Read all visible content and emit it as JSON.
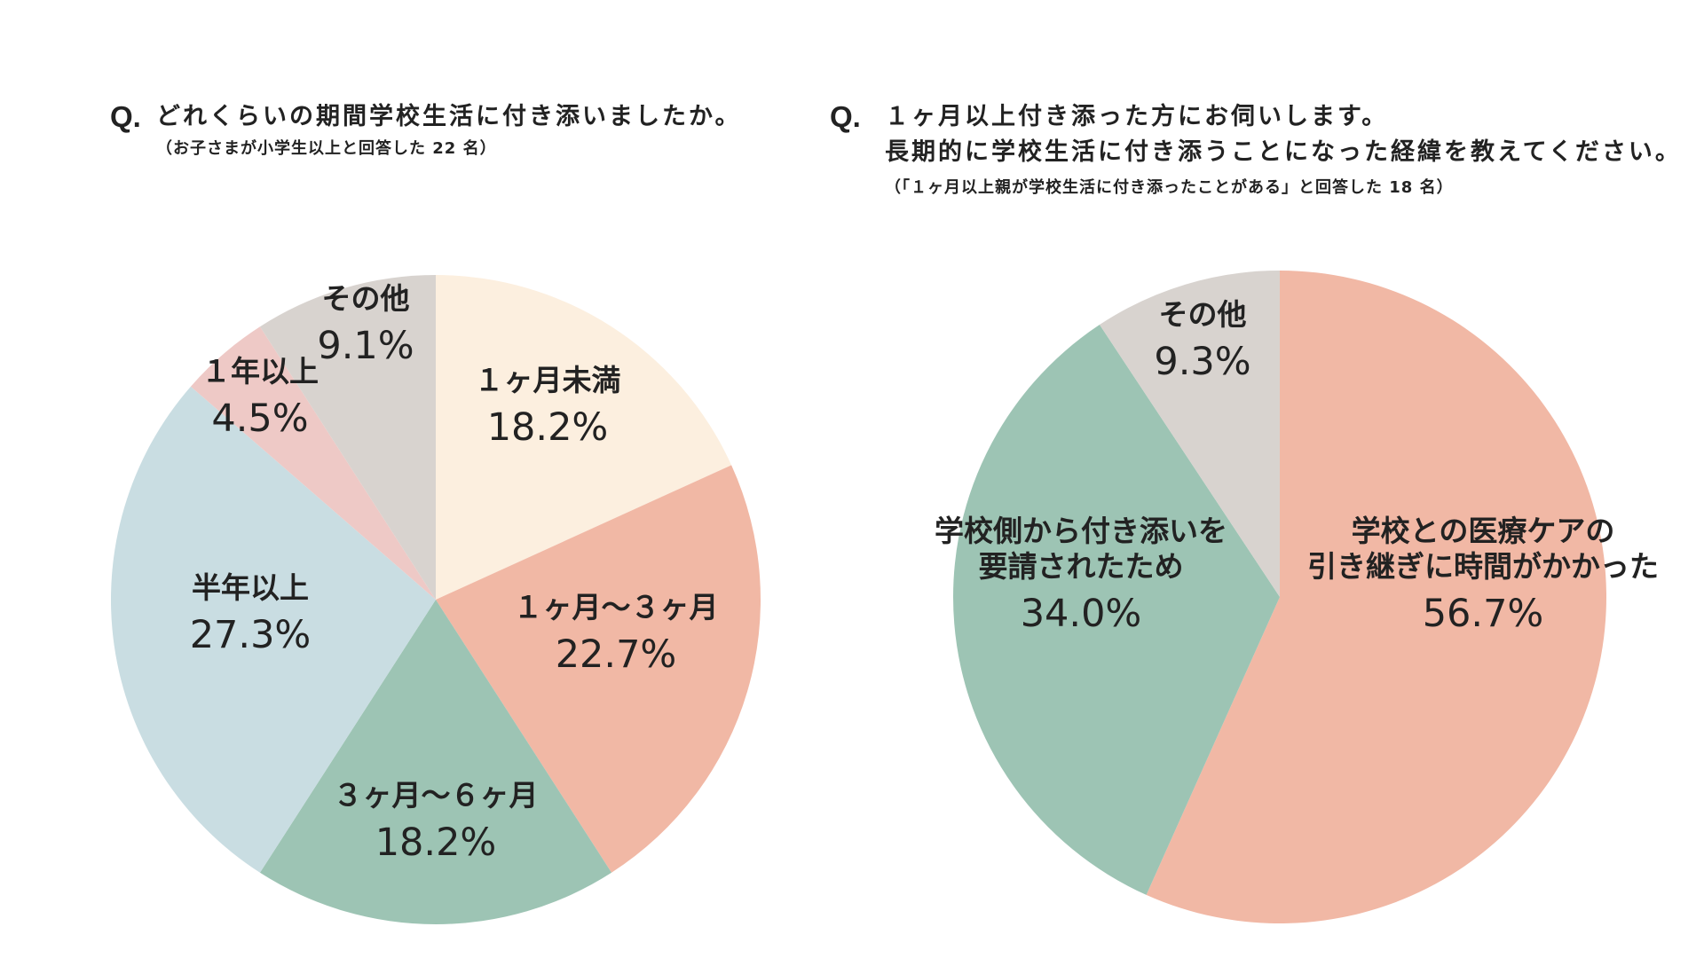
{
  "questions": {
    "q1": {
      "mark": "Q.",
      "lines": [
        "どれくらいの期間学校生活に付き添いましたか。"
      ],
      "note": "（お子さまが小学生以上と回答した 22 名）"
    },
    "q2": {
      "mark": "Q.",
      "lines": [
        "１ヶ月以上付き添った方にお伺いします。",
        "長期的に学校生活に付き添うことになった経緯を教えてください。"
      ],
      "note": "（「１ヶ月以上親が学校生活に付き添ったことがある」と回答した 18 名）"
    }
  },
  "chart_data": [
    {
      "type": "pie",
      "title": "",
      "start": "12 o'clock",
      "direction": "clockwise",
      "labels": [
        [
          "１ヶ月未満"
        ],
        [
          "１ヶ月～３ヶ月"
        ],
        [
          "３ヶ月～６ヶ月"
        ],
        [
          "半年以上"
        ],
        [
          "１年以上"
        ],
        [
          "その他"
        ]
      ],
      "values": [
        18.2,
        22.7,
        18.2,
        27.3,
        4.5,
        9.1
      ],
      "value_labels": [
        "18.2%",
        "22.7%",
        "18.2%",
        "27.3%",
        "4.5%",
        "9.1%"
      ],
      "colors": [
        "#fcefdf",
        "#f1b8a5",
        "#9dc4b4",
        "#c9dde2",
        "#eec9c6",
        "#d8d3cf"
      ]
    },
    {
      "type": "pie",
      "title": "",
      "start": "12 o'clock",
      "direction": "clockwise",
      "labels": [
        [
          "学校との医療ケアの",
          "引き継ぎに時間がかかった"
        ],
        [
          "学校側から付き添いを",
          "要請されたため"
        ],
        [
          "その他"
        ]
      ],
      "values": [
        56.7,
        34.0,
        9.3
      ],
      "value_labels": [
        "56.7%",
        "34.0%",
        "9.3%"
      ],
      "colors": [
        "#f1b8a5",
        "#9dc4b4",
        "#d8d3cf"
      ]
    }
  ]
}
